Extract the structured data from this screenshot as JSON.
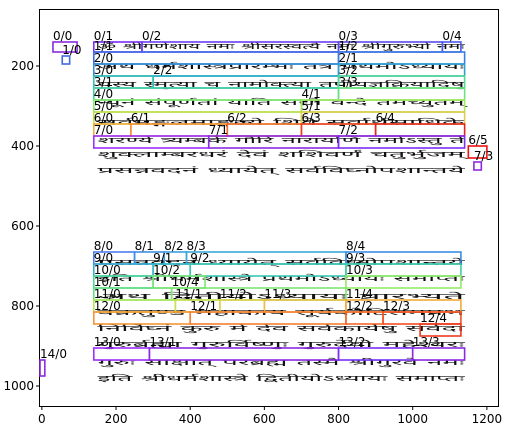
{
  "axes": {
    "x_ticks": [
      0,
      200,
      400,
      600,
      800,
      1000,
      1200
    ],
    "y_ticks": [
      200,
      400,
      600,
      800,
      1000
    ]
  },
  "image": {
    "width": 1200,
    "height": 1060,
    "lines": [
      "ॐ श्रीगणेशाय नमः श्रीसरस्वत्यै नमः श्रीगुरुभ्यो नमः",
      "अथ धर्मशास्त्रप्रारम्भः तत्र प्रथमोऽध्यायः",
      "यस्य स्मृत्या च नामोक्त्या तपोयज्ञक्रियादिषु",
      "न्यूनं संपूर्णतां याति सद्यो वन्दे तमच्युतम्",
      "सर्वमङ्गलमाङ्गल्ये शिवे सर्वार्थसाधिके",
      "शरण्ये त्र्यम्बके गौरि नारायणि नमोऽस्तु ते",
      "शुक्लाम्बरधरं देवं शशिवर्णं चतुर्भुजम्",
      "प्रसन्नवदनं ध्यायेत् सर्वविघ्नोपशान्तये",
      "इति श्रीधर्मशास्त्रे प्रथमोऽध्यायः समाप्तः",
      "अथ द्वितीयोऽध्यायः प्रारभ्यते",
      "वक्रतुण्ड महाकाय सूर्यकोटिसमप्रभ",
      "निर्विघ्नं कुरु मे देव सर्वकार्येषु सर्वदा",
      "गुरुर्ब्रह्मा गुरुर्विष्णुः गुरुर्देवो महेश्वरः",
      "गुरुः साक्षात् परब्रह्म तस्मै श्रीगुरवे नमः",
      "इति श्रीधर्मशास्त्रे द्वितीयोऽध्यायः समाप्तः"
    ]
  },
  "annotations": [
    {
      "label": "0/0",
      "color": "#8a2be2"
    },
    {
      "label": "1/0",
      "color": "#4169e1"
    },
    {
      "label": "0/1",
      "color": "#7b2ff7"
    },
    {
      "label": "0/2",
      "color": "#6a3df5"
    },
    {
      "label": "0/3",
      "color": "#5a4bf0"
    },
    {
      "label": "0/4",
      "color": "#4a5aeb"
    },
    {
      "label": "1/1",
      "color": "#3d6ee6"
    },
    {
      "label": "1/2",
      "color": "#3a7fe0"
    },
    {
      "label": "2/0",
      "color": "#3390d8"
    },
    {
      "label": "2/1",
      "color": "#2fa2cf"
    },
    {
      "label": "2/2",
      "color": "#2bb3c4"
    },
    {
      "label": "3/0",
      "color": "#33c2b6"
    },
    {
      "label": "3/1",
      "color": "#42cfa6"
    },
    {
      "label": "3/2",
      "color": "#55da94"
    },
    {
      "label": "3/3",
      "color": "#6be27f"
    },
    {
      "label": "4/0",
      "color": "#86e86a"
    },
    {
      "label": "4/1",
      "color": "#a2ea58"
    },
    {
      "label": "5/0",
      "color": "#c3e04f"
    },
    {
      "label": "5/1",
      "color": "#e0cd48"
    },
    {
      "label": "6/0",
      "color": "#f0b03f"
    },
    {
      "label": "6/1",
      "color": "#f58d35"
    },
    {
      "label": "6/2",
      "color": "#f5682b"
    },
    {
      "label": "6/3",
      "color": "#f03c22"
    },
    {
      "label": "6/4",
      "color": "#e6231d"
    },
    {
      "label": "6/5",
      "color": "#ee1111"
    },
    {
      "label": "7/0",
      "color": "#9b30ff"
    },
    {
      "label": "7/1",
      "color": "#8a2be2"
    },
    {
      "label": "7/2",
      "color": "#7b2ff7"
    },
    {
      "label": "7/3",
      "color": "#8a2be2"
    },
    {
      "label": "8/0",
      "color": "#4a7ff0"
    },
    {
      "label": "8/1",
      "color": "#3f8fe8"
    },
    {
      "label": "8/2",
      "color": "#3a9ee0"
    },
    {
      "label": "8/3",
      "color": "#3aa8d8"
    },
    {
      "label": "8/4",
      "color": "#3a8de6"
    },
    {
      "label": "9/0",
      "color": "#35b0cf"
    },
    {
      "label": "9/1",
      "color": "#33bcc2"
    },
    {
      "label": "9/2",
      "color": "#38c6b2"
    },
    {
      "label": "9/3",
      "color": "#3fcfa2"
    },
    {
      "label": "10/0",
      "color": "#4ed893"
    },
    {
      "label": "10/1",
      "color": "#62e084"
    },
    {
      "label": "10/2",
      "color": "#7ae675"
    },
    {
      "label": "10/3",
      "color": "#94ea66"
    },
    {
      "label": "10/4",
      "color": "#7fe472"
    },
    {
      "label": "11/0",
      "color": "#b0e85a"
    },
    {
      "label": "11/1",
      "color": "#cbe052"
    },
    {
      "label": "11/2",
      "color": "#e2d04a"
    },
    {
      "label": "11/3",
      "color": "#edbd43"
    },
    {
      "label": "11/4",
      "color": "#f2a93c"
    },
    {
      "label": "12/0",
      "color": "#f59535"
    },
    {
      "label": "12/1",
      "color": "#f57f2f"
    },
    {
      "label": "12/2",
      "color": "#f56828"
    },
    {
      "label": "12/3",
      "color": "#f24f22"
    },
    {
      "label": "12/4",
      "color": "#ee371d"
    },
    {
      "label": "13/0",
      "color": "#9b30ff"
    },
    {
      "label": "13/1",
      "color": "#8a2be2"
    },
    {
      "label": "13/2",
      "color": "#7b2ff7"
    },
    {
      "label": "13/3",
      "color": "#8a2be2"
    },
    {
      "label": "14/0",
      "color": "#8a2be2"
    }
  ]
}
